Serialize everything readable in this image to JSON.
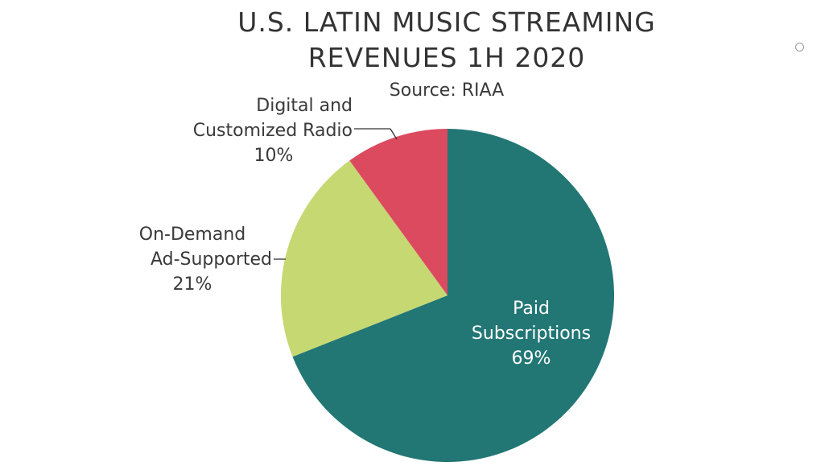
{
  "chart_data": {
    "type": "pie",
    "title": "U.S. LATIN MUSIC STREAMING REVENUES 1H 2020",
    "title_lines": [
      "U.S. LATIN MUSIC STREAMING",
      "REVENUES 1H 2020"
    ],
    "subtitle": "Source: RIAA",
    "slices": [
      {
        "name": "Paid Subscriptions",
        "label_lines": [
          "Paid",
          "Subscriptions"
        ],
        "value": 69,
        "pct_label": "69%",
        "color": "#227775"
      },
      {
        "name": "On-Demand Ad-Supported",
        "label_lines": [
          "On-Demand",
          "Ad-Supported"
        ],
        "value": 21,
        "pct_label": "21%",
        "color": "#c5d872"
      },
      {
        "name": "Digital and Customized Radio",
        "label_lines": [
          "Digital and",
          "Customized Radio"
        ],
        "value": 10,
        "pct_label": "10%",
        "color": "#dc4a5f"
      }
    ],
    "start": "12 o'clock",
    "direction": "clockwise"
  }
}
